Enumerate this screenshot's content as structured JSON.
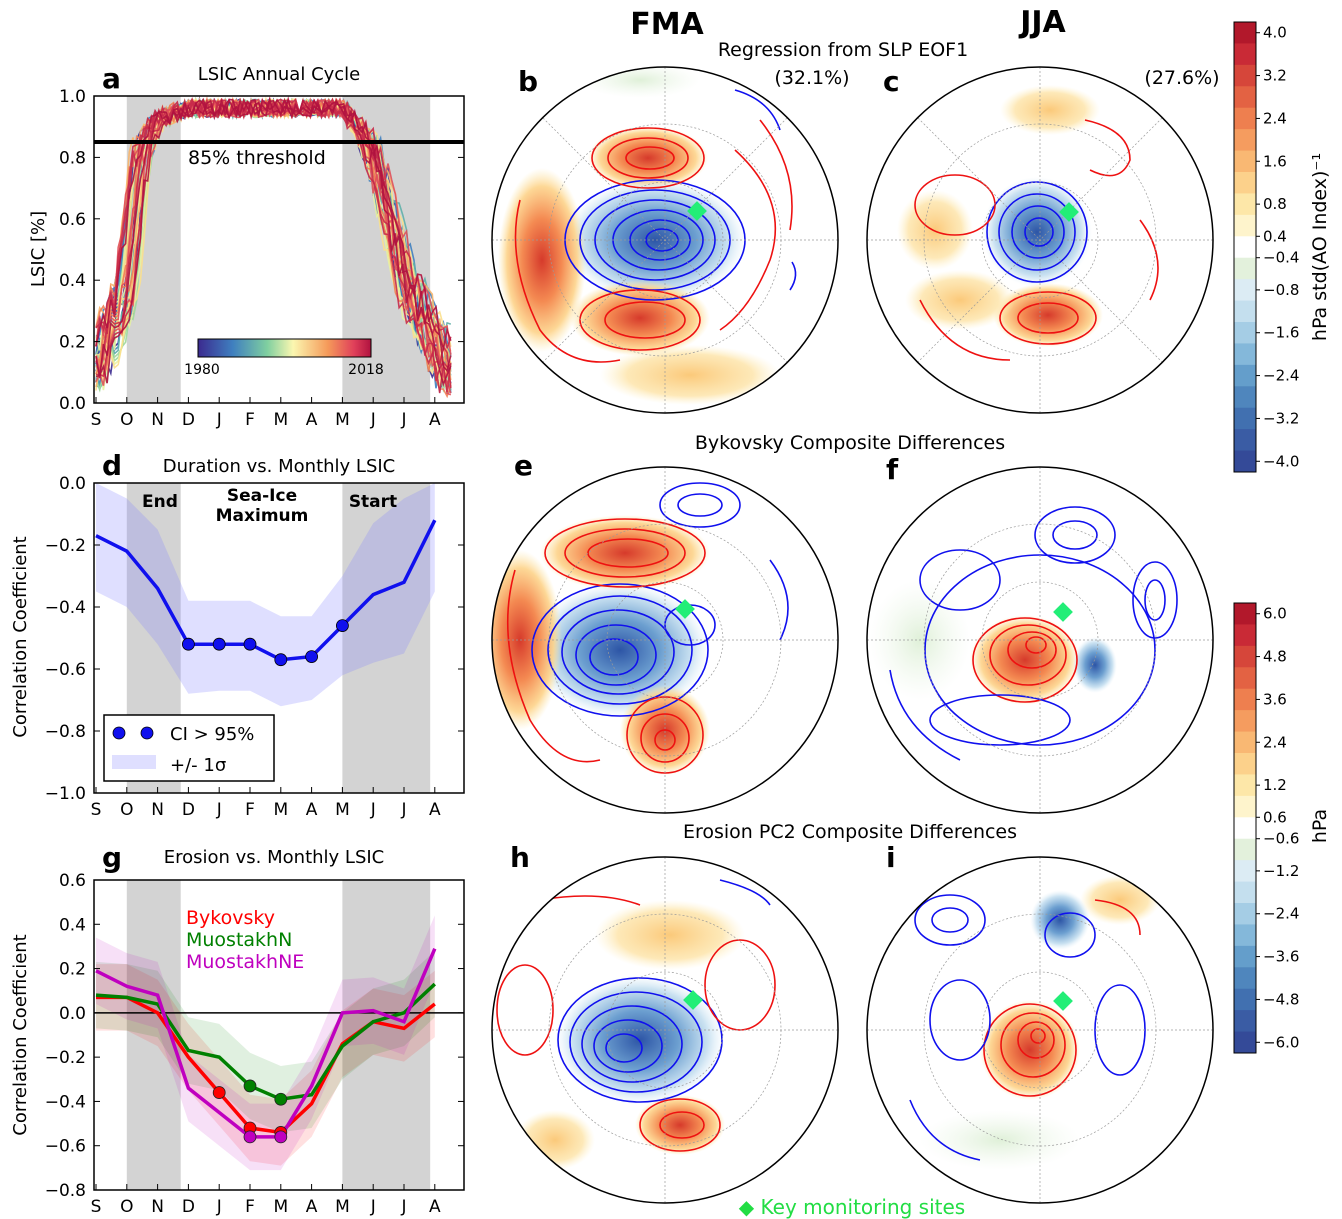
{
  "header": {
    "col_fma": "FMA",
    "col_jja": "JJA",
    "row1_title": "Regression from SLP EOF1",
    "row2_title": "Bykovsky Composite Differences",
    "row3_title": "Erosion PC2 Composite Differences",
    "pct_fma": "(32.1%)",
    "pct_jja": "(27.6%)"
  },
  "labels": {
    "a": "a",
    "b": "b",
    "c": "c",
    "d": "d",
    "e": "e",
    "f": "f",
    "g": "g",
    "h": "h",
    "i": "i"
  },
  "footer": {
    "key_sites": "◆ Key monitoring sites"
  },
  "colorbar_top": {
    "label": "hPa std(AO Index)⁻¹",
    "ticks": [
      "4.0",
      "3.2",
      "2.4",
      "1.6",
      "0.8",
      "0.4",
      "−0.4",
      "−0.8",
      "−1.6",
      "−2.4",
      "−3.2",
      "−4.0"
    ]
  },
  "colorbar_bottom": {
    "label": "hPa",
    "ticks": [
      "6.0",
      "4.8",
      "3.6",
      "2.4",
      "1.2",
      "0.6",
      "−0.6",
      "−1.2",
      "−2.4",
      "−3.6",
      "−4.8",
      "−6.0"
    ]
  },
  "colors": {
    "blue_series": "#1010ee",
    "bykovsky": "#ff0000",
    "muostakhN": "#008000",
    "muostakhNE": "#bf00bf",
    "key_site": "#22ee77",
    "gray_band": "#d3d3d3"
  },
  "chart_data": [
    {
      "id": "a",
      "type": "line",
      "title": "LSIC Annual Cycle",
      "ylabel": "LSIC [%]",
      "xlabel": "",
      "categories": [
        "S",
        "O",
        "N",
        "D",
        "J",
        "F",
        "M",
        "A",
        "M",
        "J",
        "J",
        "A"
      ],
      "ylim": [
        0.0,
        1.0
      ],
      "yticks": [
        "0.0",
        "0.2",
        "0.4",
        "0.6",
        "0.8",
        "1.0"
      ],
      "threshold": {
        "value": 0.85,
        "label": "85% threshold"
      },
      "colorbar": {
        "start": "1980",
        "end": "2018"
      },
      "year_range": [
        1980,
        2018
      ],
      "typical_cycle": {
        "x_months": [
          0,
          1,
          1.5,
          2,
          3,
          8,
          8.5,
          9,
          10,
          11.5
        ],
        "y": [
          0.1,
          0.35,
          0.8,
          0.92,
          0.96,
          0.96,
          0.9,
          0.8,
          0.4,
          0.08
        ]
      }
    },
    {
      "id": "d",
      "type": "line",
      "title": "Duration vs. Monthly LSIC",
      "ylabel": "Correlation Coefficient",
      "xlabel": "",
      "categories": [
        "S",
        "O",
        "N",
        "D",
        "J",
        "F",
        "M",
        "A",
        "M",
        "J",
        "J",
        "A"
      ],
      "ylim": [
        -1.0,
        0.0
      ],
      "yticks": [
        "−1.0",
        "−0.8",
        "−0.6",
        "−0.4",
        "−0.2",
        "0.0"
      ],
      "annotations": [
        "End",
        "Sea-Ice",
        "Maximum",
        "Start"
      ],
      "series": [
        {
          "name": "",
          "values": [
            -0.17,
            -0.22,
            -0.34,
            -0.52,
            -0.52,
            -0.52,
            -0.57,
            -0.56,
            -0.46,
            -0.36,
            -0.32,
            -0.12
          ],
          "significant": [
            false,
            false,
            false,
            true,
            true,
            true,
            true,
            true,
            true,
            false,
            false,
            false
          ],
          "sigma_upper": [
            0.0,
            -0.05,
            -0.15,
            -0.38,
            -0.38,
            -0.38,
            -0.43,
            -0.43,
            -0.3,
            -0.13,
            -0.05,
            0.0
          ],
          "sigma_lower": [
            -0.35,
            -0.4,
            -0.52,
            -0.68,
            -0.67,
            -0.67,
            -0.72,
            -0.7,
            -0.62,
            -0.58,
            -0.55,
            -0.35
          ]
        }
      ],
      "legend": {
        "placement": "lower-left",
        "entries": [
          "CI > 95%",
          "+/- 1σ"
        ]
      }
    },
    {
      "id": "g",
      "type": "line",
      "title": "Erosion vs. Monthly LSIC",
      "ylabel": "Correlation Coefficient",
      "xlabel": "",
      "categories": [
        "S",
        "O",
        "N",
        "D",
        "J",
        "F",
        "M",
        "A",
        "M",
        "J",
        "J",
        "A"
      ],
      "ylim": [
        -0.8,
        0.6
      ],
      "yticks": [
        "−0.8",
        "−0.6",
        "−0.4",
        "−0.2",
        "0.0",
        "0.2",
        "0.4",
        "0.6"
      ],
      "series": [
        {
          "name": "Bykovsky",
          "values": [
            0.07,
            0.07,
            0.0,
            -0.2,
            -0.36,
            -0.52,
            -0.54,
            -0.41,
            -0.14,
            -0.04,
            -0.07,
            0.04
          ],
          "significant": [
            false,
            false,
            false,
            false,
            true,
            true,
            true,
            false,
            false,
            false,
            false,
            false
          ]
        },
        {
          "name": "MuostakhN",
          "values": [
            0.08,
            0.07,
            0.04,
            -0.17,
            -0.2,
            -0.33,
            -0.39,
            -0.37,
            -0.15,
            -0.04,
            0.0,
            0.13
          ],
          "significant": [
            false,
            false,
            false,
            false,
            false,
            true,
            true,
            false,
            false,
            false,
            false,
            false
          ]
        },
        {
          "name": "MuostakhNE",
          "values": [
            0.19,
            0.12,
            0.08,
            -0.34,
            -0.45,
            -0.56,
            -0.56,
            -0.33,
            0.0,
            0.01,
            -0.04,
            0.29
          ],
          "significant": [
            false,
            false,
            false,
            false,
            false,
            true,
            true,
            false,
            false,
            false,
            false,
            false
          ]
        }
      ],
      "legend": {
        "placement": "top-center"
      }
    }
  ]
}
